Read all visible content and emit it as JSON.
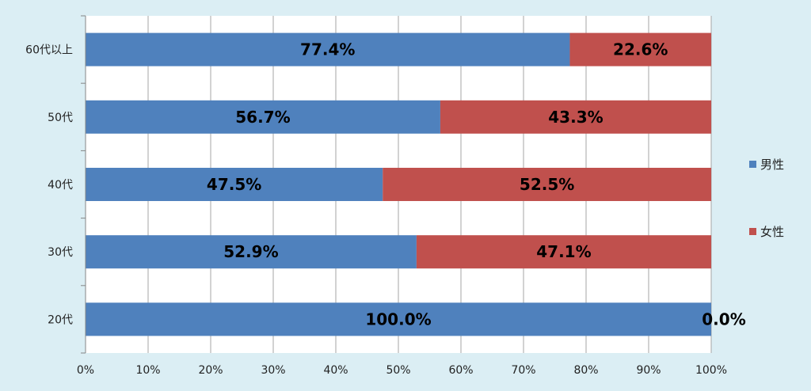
{
  "chart_data": {
    "type": "bar",
    "orientation": "horizontal",
    "stacked": "percent",
    "categories": [
      "60代以上",
      "50代",
      "40代",
      "30代",
      "20代"
    ],
    "series": [
      {
        "name": "男性",
        "color": "#4f81bd",
        "values": [
          77.4,
          56.7,
          47.5,
          52.9,
          100.0
        ],
        "labels": [
          "77.4%",
          "56.7%",
          "47.5%",
          "52.9%",
          "100.0%"
        ]
      },
      {
        "name": "女性",
        "color": "#c0504d",
        "values": [
          22.6,
          43.3,
          52.5,
          47.1,
          0.0
        ],
        "labels": [
          "22.6%",
          "43.3%",
          "52.5%",
          "47.1%",
          "0.0%"
        ]
      }
    ],
    "xlim": [
      0,
      100
    ],
    "xticks": [
      "0%",
      "10%",
      "20%",
      "30%",
      "40%",
      "50%",
      "60%",
      "70%",
      "80%",
      "90%",
      "100%"
    ],
    "grid": true,
    "legend": "right"
  }
}
